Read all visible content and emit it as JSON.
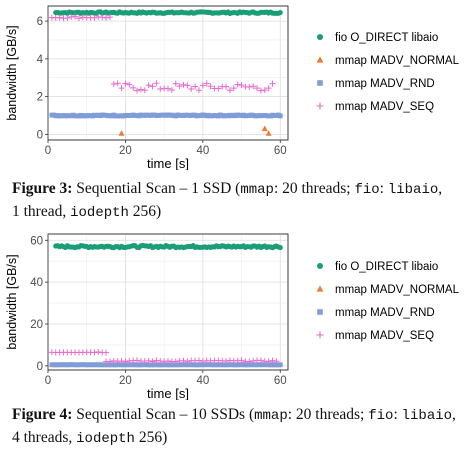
{
  "legend_labels": [
    "fio O_DIRECT libaio",
    "mmap MADV_NORMAL",
    "mmap MADV_RND",
    "mmap MADV_SEQ"
  ],
  "colors": {
    "fio": "#1b9e77",
    "normal": "#f07a30",
    "rnd": "#7f9dd6",
    "seq": "#e76bd0"
  },
  "captions": [
    {
      "label": "Figure 3:",
      "title": "Sequential Scan – 1 SSD (",
      "t1": "mmap",
      "t2": ": 20 threads; ",
      "t3": "fio",
      "t4": ": ",
      "t5": "libaio",
      "t6": ",",
      "t7": "1 thread, ",
      "t8": "iodepth",
      "t9": " 256)"
    },
    {
      "label": "Figure 4:",
      "title": "Sequential Scan – 10 SSDs (",
      "t1": "mmap",
      "t2": ": 20 threads; ",
      "t3": "fio",
      "t4": ": ",
      "t5": "libaio",
      "t6": ",",
      "t7": "4 threads, ",
      "t8": "iodepth",
      "t9": " 256)"
    }
  ],
  "chart_data": [
    {
      "type": "scatter",
      "xlabel": "time [s]",
      "ylabel": "bandwidth [GB/s]",
      "xlim": [
        0,
        62
      ],
      "ylim": [
        -0.3,
        6.8
      ],
      "xticks": [
        0,
        20,
        40,
        60
      ],
      "yticks": [
        0,
        2,
        4,
        6
      ],
      "grid": true,
      "legend": "right",
      "series": [
        {
          "name": "fio O_DIRECT libaio",
          "shape": "circle",
          "x_start": 2,
          "x_end": 60,
          "x_step": 0.5,
          "y": 6.45,
          "jitter": 0.04
        },
        {
          "name": "mmap MADV_NORMAL",
          "shape": "triangle",
          "points": [
            [
              19,
              0.05
            ],
            [
              56,
              0.3
            ],
            [
              57,
              0.05
            ]
          ]
        },
        {
          "name": "mmap MADV_RND",
          "shape": "square",
          "x_start": 1,
          "x_end": 60,
          "x_step": 0.5,
          "y": 1.0,
          "jitter": 0.03
        },
        {
          "name": "mmap MADV_SEQ",
          "shape": "plus",
          "segments": [
            {
              "x_start": 1,
              "x_end": 16,
              "x_step": 1,
              "y": 6.2,
              "jitter": 0.05
            },
            {
              "x_start": 17,
              "x_end": 58,
              "x_step": 1,
              "y": 2.5,
              "jitter": 0.22
            }
          ]
        }
      ]
    },
    {
      "type": "scatter",
      "xlabel": "time [s]",
      "ylabel": "bandwidth [GB/s]",
      "xlim": [
        0,
        62
      ],
      "ylim": [
        -2,
        63
      ],
      "xticks": [
        0,
        20,
        40,
        60
      ],
      "yticks": [
        0,
        20,
        40,
        60
      ],
      "grid": true,
      "legend": "right",
      "series": [
        {
          "name": "fio O_DIRECT libaio",
          "shape": "circle",
          "x_start": 2,
          "x_end": 60,
          "x_step": 0.5,
          "y": 57,
          "jitter": 0.5
        },
        {
          "name": "mmap MADV_NORMAL",
          "shape": "triangle",
          "points": [
            [
              58,
              0.5
            ],
            [
              59,
              0.5
            ]
          ]
        },
        {
          "name": "mmap MADV_RND",
          "shape": "square",
          "x_start": 1,
          "x_end": 60,
          "x_step": 0.5,
          "y": 0.5,
          "jitter": 0.05
        },
        {
          "name": "mmap MADV_SEQ",
          "shape": "plus",
          "segments": [
            {
              "x_start": 1,
              "x_end": 15,
              "x_step": 1,
              "y": 6.5,
              "jitter": 0.2
            },
            {
              "x_start": 15,
              "x_end": 59,
              "x_step": 1,
              "y": 2.3,
              "jitter": 0.3
            }
          ]
        }
      ]
    }
  ]
}
